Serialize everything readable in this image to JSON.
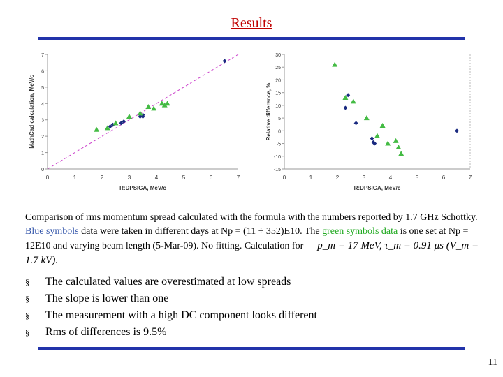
{
  "slide": {
    "title": "Results",
    "page_number": "11",
    "caption": {
      "part1": "Comparison of rms momentum spread calculated with the formula with the numbers reported by 1.7 GHz Schottky. ",
      "blue_text": "Blue symbols",
      "part2": " data were taken in different days at Np = (11 ÷ 352)E10. The ",
      "green_text": "green symbols data",
      "part3": " is one set at Np = 12E10 and varying beam length (5-Mar-09). No fitting. Calculation for",
      "formula": "p_m = 17 MeV, τ_m = 0.91 μs (V_m = 1.7 kV)."
    },
    "bullets": [
      "The calculated values are overestimated at low spreads",
      "The slope is lower than one",
      "The measurement with a high DC component  looks different",
      "Rms of differences is  9.5%"
    ],
    "bullet_mark": "§"
  },
  "colors": {
    "title": "#c00000",
    "bar": "#2233aa",
    "blue_series": "#1a2a80",
    "green_series": "#44bb44",
    "ideal_line": "#cc44cc"
  },
  "chart_data": [
    {
      "type": "scatter",
      "xlabel": "R:DPSIGA, MeV/c",
      "ylabel": "MathCad calculation, MeV/c",
      "xlim": [
        0,
        7
      ],
      "ylim": [
        0,
        7
      ],
      "x_ticks": [
        "0",
        "1",
        "2",
        "3",
        "4",
        "5",
        "6",
        "7"
      ],
      "y_ticks": [
        "0",
        "1",
        "2",
        "3",
        "4",
        "5",
        "6",
        "7"
      ],
      "reference_line": [
        [
          0,
          0
        ],
        [
          7,
          7
        ]
      ],
      "series": [
        {
          "marker": "diamond",
          "color": "#1a2a80",
          "points": [
            [
              2.3,
              2.6
            ],
            [
              2.4,
              2.7
            ],
            [
              2.7,
              2.8
            ],
            [
              2.8,
              2.9
            ],
            [
              3.4,
              3.2
            ],
            [
              3.5,
              3.3
            ],
            [
              3.5,
              3.2
            ],
            [
              6.5,
              6.6
            ]
          ]
        },
        {
          "marker": "triangle",
          "color": "#44bb44",
          "points": [
            [
              1.8,
              2.4
            ],
            [
              2.2,
              2.5
            ],
            [
              2.5,
              2.8
            ],
            [
              3.0,
              3.2
            ],
            [
              3.4,
              3.4
            ],
            [
              3.7,
              3.8
            ],
            [
              3.9,
              3.7
            ],
            [
              4.2,
              4.0
            ],
            [
              4.3,
              3.9
            ],
            [
              4.4,
              4.0
            ]
          ]
        }
      ]
    },
    {
      "type": "scatter",
      "xlabel": "R:DPSIGA, MeV/c",
      "ylabel": "Relative difference, %",
      "xlim": [
        0,
        7
      ],
      "ylim": [
        -15,
        30
      ],
      "x_ticks": [
        "0",
        "1",
        "2",
        "3",
        "4",
        "5",
        "6",
        "7"
      ],
      "y_ticks": [
        "30",
        "25",
        "20",
        "15",
        "10",
        "5",
        "0",
        "-5",
        "-10",
        "-15"
      ],
      "series": [
        {
          "marker": "diamond",
          "color": "#1a2a80",
          "points": [
            [
              2.3,
              9
            ],
            [
              2.4,
              14
            ],
            [
              2.7,
              3
            ],
            [
              3.3,
              -3
            ],
            [
              3.35,
              -4.5
            ],
            [
              3.4,
              -5
            ],
            [
              6.5,
              0
            ]
          ]
        },
        {
          "marker": "triangle",
          "color": "#44bb44",
          "points": [
            [
              1.9,
              26
            ],
            [
              2.3,
              13
            ],
            [
              2.6,
              11.5
            ],
            [
              3.1,
              5
            ],
            [
              3.5,
              -2
            ],
            [
              3.7,
              2
            ],
            [
              3.9,
              -5
            ],
            [
              4.2,
              -4
            ],
            [
              4.3,
              -6.5
            ],
            [
              4.4,
              -9
            ]
          ]
        }
      ]
    }
  ]
}
